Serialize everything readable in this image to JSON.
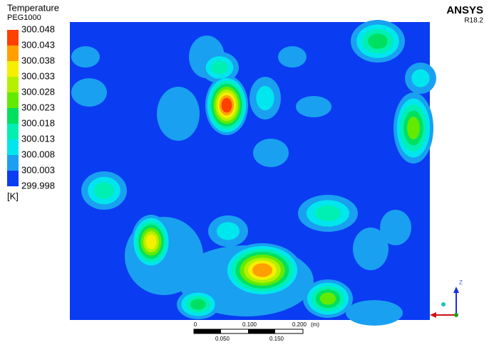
{
  "legend": {
    "title": "Temperature",
    "variable": "PEG1000",
    "levels": [
      "300.048",
      "300.043",
      "300.038",
      "300.033",
      "300.028",
      "300.023",
      "300.018",
      "300.013",
      "300.008",
      "300.003",
      "299.998"
    ],
    "unit": "[K]"
  },
  "logo": {
    "name": "ANSYS",
    "version": "R18.2"
  },
  "scale_bar": {
    "top_labels": [
      "0",
      "0.100",
      "0.200"
    ],
    "unit": "(m)",
    "bottom_labels": [
      "0.050",
      "0.150"
    ]
  },
  "triad": {
    "axis": "Z"
  }
}
